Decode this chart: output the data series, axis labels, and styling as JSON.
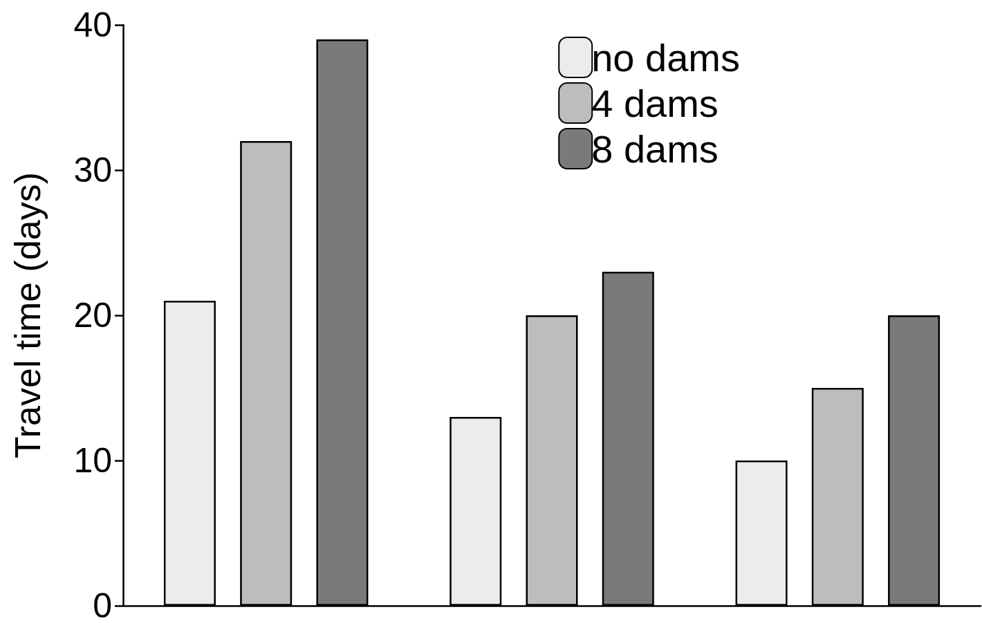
{
  "chart_data": {
    "type": "bar",
    "ylabel": "Travel time (days)",
    "categories": [
      null,
      null,
      null
    ],
    "series": [
      {
        "name": "no dams",
        "color": "#ececec",
        "values": [
          21,
          13,
          10
        ]
      },
      {
        "name": "4 dams",
        "color": "#bdbdbd",
        "values": [
          32,
          20,
          15
        ]
      },
      {
        "name": "8 dams",
        "color": "#7a7a7a",
        "values": [
          39,
          23,
          20
        ]
      }
    ],
    "ylim": [
      0,
      40
    ],
    "yticks": [
      0,
      10,
      20,
      30,
      40
    ],
    "grid": false,
    "legend": "top right",
    "tick_labels": "y"
  }
}
